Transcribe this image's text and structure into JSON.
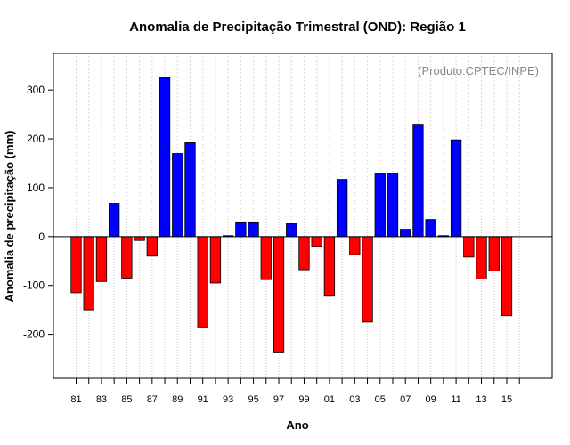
{
  "chart_data": {
    "type": "bar",
    "title": "Anomalia de Precipitação Trimestral (OND): Região 1",
    "xlabel": "Ano",
    "ylabel": "Anomalia de precipitação (mm)",
    "credit": "(Produto:CPTEC/INPE)",
    "ylim": [
      -290,
      375
    ],
    "yticks": [
      -200,
      -100,
      0,
      100,
      200,
      300
    ],
    "grid": "vertical dotted",
    "positive_color": "#0000ff",
    "negative_color": "#ff0000",
    "categories": [
      "81",
      "82",
      "83",
      "84",
      "85",
      "86",
      "87",
      "88",
      "89",
      "90",
      "91",
      "92",
      "93",
      "94",
      "95",
      "96",
      "97",
      "98",
      "99",
      "00",
      "01",
      "02",
      "03",
      "04",
      "05",
      "06",
      "07",
      "08",
      "09",
      "10",
      "11",
      "12",
      "13",
      "14",
      "15",
      "16"
    ],
    "x_tick_labels": [
      "81",
      "83",
      "85",
      "87",
      "89",
      "91",
      "93",
      "95",
      "97",
      "99",
      "01",
      "03",
      "05",
      "07",
      "09",
      "11",
      "13",
      "15"
    ],
    "values": [
      -115,
      -150,
      -92,
      68,
      -85,
      -8,
      -40,
      325,
      170,
      192,
      -185,
      -95,
      2,
      30,
      30,
      -88,
      -238,
      27,
      -68,
      -20,
      -122,
      117,
      -37,
      -175,
      130,
      130,
      15,
      230,
      35,
      2,
      198,
      -42,
      -87,
      -70,
      -162,
      0
    ]
  }
}
